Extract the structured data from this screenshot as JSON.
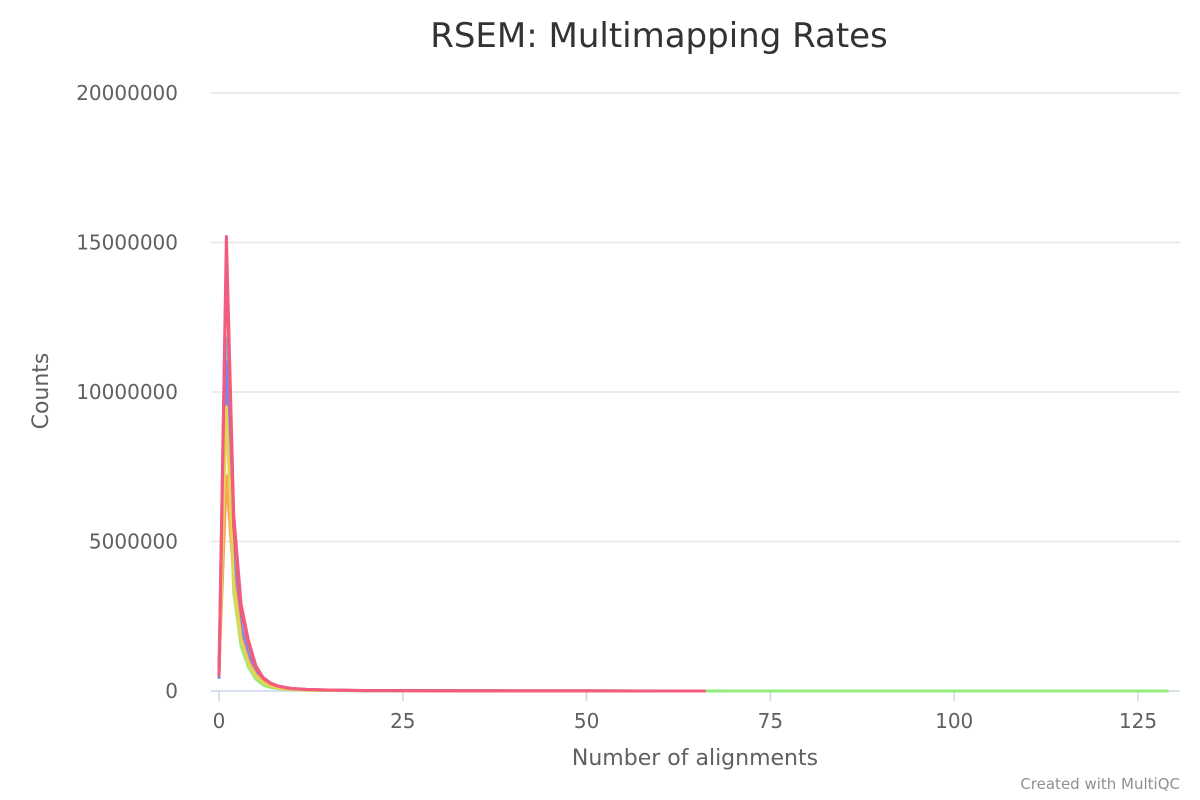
{
  "chart_data": {
    "type": "line",
    "title": "RSEM: Multimapping Rates",
    "xlabel": "Number of alignments",
    "ylabel": "Counts",
    "xlim": [
      0,
      130
    ],
    "ylim": [
      0,
      20000000
    ],
    "x_ticks": [
      "0",
      "25",
      "50",
      "75",
      "100",
      "125"
    ],
    "y_ticks": [
      "0",
      "5000000",
      "10000000",
      "15000000",
      "20000000"
    ],
    "grid": true,
    "legend": "none",
    "credit": "Created with MultiQC",
    "series": [
      {
        "color": "#90ed7d",
        "x": [
          0,
          1,
          2,
          3,
          4,
          5,
          6,
          7,
          8,
          9,
          10,
          12,
          15,
          20,
          30,
          50,
          70,
          100,
          129
        ],
        "values": [
          600000,
          10200000,
          3300000,
          1500000,
          800000,
          400000,
          200000,
          120000,
          80000,
          60000,
          40000,
          30000,
          20000,
          10000,
          5000,
          2000,
          1000,
          500,
          0
        ]
      },
      {
        "color": "#7cb5ec",
        "x": [
          0,
          1,
          2,
          3,
          4,
          5,
          6,
          7,
          8,
          9,
          10,
          12,
          15,
          20,
          30,
          50,
          66
        ],
        "values": [
          500000,
          11800000,
          4500000,
          2300000,
          1300000,
          700000,
          380000,
          220000,
          140000,
          100000,
          70000,
          45000,
          30000,
          15000,
          8000,
          3000,
          0
        ]
      },
      {
        "color": "#8085e9",
        "x": [
          0,
          1,
          2,
          3,
          4,
          5,
          6,
          7,
          8,
          9,
          10,
          12,
          15,
          20,
          30,
          50,
          66
        ],
        "values": [
          450000,
          11000000,
          4200000,
          2100000,
          1200000,
          650000,
          350000,
          200000,
          130000,
          90000,
          60000,
          40000,
          25000,
          12000,
          6000,
          2000,
          0
        ]
      },
      {
        "color": "#f7a35c",
        "x": [
          0,
          1,
          2,
          3,
          4,
          5,
          6,
          7,
          8,
          9,
          10,
          12,
          15,
          20,
          30,
          50,
          66
        ],
        "values": [
          700000,
          7200000,
          3800000,
          1800000,
          1000000,
          550000,
          300000,
          180000,
          110000,
          80000,
          55000,
          35000,
          22000,
          11000,
          5000,
          2000,
          0
        ]
      },
      {
        "color": "#e4d354",
        "x": [
          0,
          1,
          2,
          3,
          4,
          5,
          6,
          7,
          8,
          9,
          10,
          12,
          15,
          20,
          30,
          50,
          66
        ],
        "values": [
          650000,
          9500000,
          3500000,
          1700000,
          900000,
          500000,
          280000,
          160000,
          100000,
          70000,
          50000,
          30000,
          20000,
          10000,
          5000,
          2000,
          0
        ]
      },
      {
        "color": "#f45b5b",
        "x": [
          0,
          1,
          2,
          3,
          4,
          5,
          6,
          7,
          8,
          9,
          10,
          12,
          15,
          20,
          30,
          50,
          66
        ],
        "values": [
          550000,
          14600000,
          5500000,
          2700000,
          1600000,
          800000,
          420000,
          250000,
          160000,
          110000,
          80000,
          50000,
          30000,
          15000,
          7000,
          3000,
          0
        ]
      },
      {
        "color": "#f15c80",
        "x": [
          0,
          1,
          2,
          3,
          4,
          5,
          6,
          7,
          8,
          9,
          10,
          12,
          15,
          20,
          30,
          50,
          66
        ],
        "values": [
          600000,
          15200000,
          5900000,
          2900000,
          1700000,
          850000,
          450000,
          270000,
          170000,
          120000,
          85000,
          55000,
          35000,
          18000,
          8000,
          3000,
          0
        ]
      }
    ]
  }
}
